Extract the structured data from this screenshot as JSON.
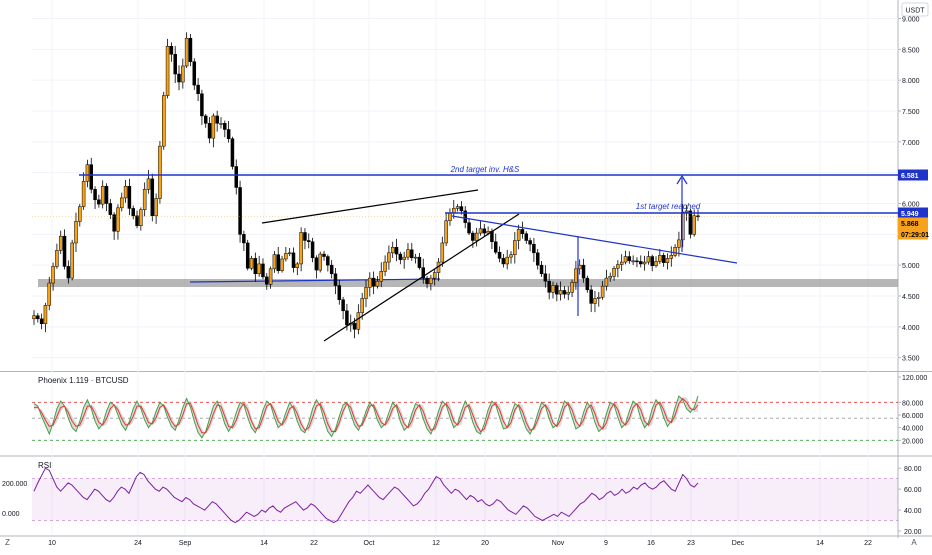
{
  "chart_data": [
    {
      "type": "candlestick",
      "title": "",
      "currency": "USDT",
      "price_axis": {
        "ticks": [
          "9.000",
          "8.500",
          "8.000",
          "7.500",
          "7.000",
          "6.500",
          "6.000",
          "5.500",
          "5.000",
          "4.500",
          "4.000",
          "3.500"
        ],
        "ylim": [
          3.3,
          9.3
        ]
      },
      "time_axis": {
        "ticks": [
          "10",
          "24",
          "Sep",
          "14",
          "22",
          "Oct",
          "12",
          "20",
          "Nov",
          "9",
          "16",
          "23",
          "Dec",
          "14",
          "22"
        ]
      },
      "series": [
        {
          "values": [
            4.18,
            4.13,
            4.05,
            4.35,
            4.71,
            4.98,
            5.24,
            5.47,
            4.98,
            4.79,
            5.36,
            5.71,
            5.95,
            6.36,
            6.63,
            6.23,
            6.06,
            5.99,
            6.28,
            6.0,
            5.82,
            5.55,
            5.93,
            6.09,
            6.28,
            5.92,
            5.8,
            5.64,
            5.9,
            6.23,
            6.4,
            5.8,
            6.08,
            6.93,
            7.75,
            8.55,
            8.42,
            8.1,
            7.97,
            8.23,
            8.68,
            8.3,
            7.92,
            7.78,
            7.42,
            7.3,
            7.06,
            7.42,
            7.3,
            7.3,
            7.2,
            7.05,
            6.6,
            6.26,
            5.5,
            5.36,
            4.95,
            5.11,
            4.86,
            5.02,
            4.81,
            4.69,
            4.94,
            5.17,
            4.91,
            5.1,
            5.19,
            5.2,
            4.96,
            5.02,
            5.53,
            5.4,
            5.38,
            5.12,
            4.92,
            5.18,
            5.14,
            5.0,
            4.86,
            4.67,
            4.44,
            4.26,
            4.03,
            4.06,
            3.96,
            4.23,
            4.46,
            4.64,
            4.79,
            4.66,
            4.74,
            4.9,
            5.05,
            5.2,
            5.29,
            5.18,
            5.09,
            5.13,
            5.25,
            5.12,
            5.13,
            4.96,
            4.79,
            4.7,
            4.79,
            4.88,
            5.05,
            5.36,
            5.72,
            5.85,
            5.92,
            5.95,
            5.88,
            5.69,
            5.52,
            5.4,
            5.52,
            5.59,
            5.52,
            5.55,
            5.38,
            5.21,
            5.11,
            5.02,
            5.13,
            5.17,
            5.4,
            5.58,
            5.51,
            5.4,
            5.34,
            5.2,
            5.0,
            4.86,
            4.74,
            4.56,
            4.67,
            4.53,
            4.59,
            4.53,
            4.56,
            4.72,
            4.94,
            5.0,
            4.79,
            4.6,
            4.38,
            4.46,
            4.48,
            4.66,
            4.79,
            4.82,
            4.95,
            5.01,
            5.05,
            5.14,
            5.07,
            5.07,
            5.06,
            5.02,
            5.05,
            5.14,
            4.99,
            5.06,
            5.16,
            5.04,
            5.11,
            5.16,
            5.29,
            5.41,
            5.86,
            5.88,
            5.5,
            5.8,
            5.79
          ]
        }
      ],
      "last_values": {
        "target_1": "5.949",
        "target_2": "6.581",
        "price": "5.868",
        "countdown": "07:29:01"
      },
      "annotations": [
        "2nd target inv. H&S",
        "1st target reached"
      ]
    },
    {
      "type": "line",
      "title": "Phoenix 1.119 · BTCUSD",
      "y_ticks": [
        "120.000",
        "80.000",
        "60.000",
        "40.000",
        "20.000"
      ],
      "ylim": [
        0,
        120
      ],
      "levels": [
        80,
        55,
        20
      ],
      "series": [
        {
          "name": "",
          "values": [
            78,
            74,
            58,
            44,
            30,
            48,
            70,
            82,
            74,
            55,
            40,
            34,
            50,
            72,
            84,
            70,
            50,
            38,
            46,
            66,
            80,
            76,
            60,
            44,
            36,
            50,
            70,
            82,
            70,
            52,
            40,
            48,
            66,
            80,
            74,
            56,
            42,
            36,
            52,
            72,
            86,
            72,
            50,
            32,
            24,
            34,
            54,
            74,
            82,
            66,
            46,
            34,
            44,
            64,
            80,
            76,
            56,
            40,
            32,
            46,
            68,
            82,
            76,
            56,
            40,
            46,
            64,
            80,
            70,
            50,
            36,
            32,
            48,
            70,
            84,
            74,
            52,
            34,
            26,
            38,
            58,
            76,
            80,
            62,
            44,
            36,
            48,
            66,
            80,
            72,
            52,
            40,
            46,
            64,
            80,
            72,
            50,
            36,
            42,
            62,
            78,
            74,
            54,
            38,
            30,
            44,
            66,
            82,
            76,
            56,
            40,
            46,
            66,
            82,
            70,
            48,
            34,
            30,
            46,
            68,
            82,
            76,
            56,
            38,
            40,
            60,
            78,
            74,
            54,
            38,
            30,
            42,
            62,
            80,
            74,
            54,
            40,
            44,
            64,
            82,
            76,
            56,
            38,
            42,
            64,
            80,
            70,
            48,
            34,
            40,
            62,
            80,
            76,
            56,
            40,
            46,
            66,
            82,
            76,
            54,
            40,
            48,
            70,
            84,
            76,
            56,
            42,
            50,
            72,
            90,
            84,
            70,
            64,
            72,
            90
          ]
        },
        {
          "name": "",
          "values": [
            72,
            72,
            64,
            52,
            42,
            44,
            58,
            72,
            74,
            64,
            50,
            42,
            44,
            58,
            74,
            74,
            62,
            48,
            44,
            54,
            70,
            76,
            68,
            54,
            44,
            46,
            58,
            74,
            74,
            62,
            48,
            46,
            56,
            72,
            76,
            64,
            50,
            42,
            46,
            60,
            78,
            78,
            62,
            44,
            32,
            32,
            44,
            62,
            76,
            74,
            58,
            42,
            40,
            52,
            70,
            78,
            68,
            50,
            38,
            40,
            56,
            74,
            78,
            66,
            50,
            44,
            54,
            70,
            74,
            62,
            46,
            36,
            40,
            56,
            74,
            78,
            64,
            46,
            34,
            34,
            48,
            66,
            78,
            72,
            54,
            42,
            44,
            58,
            74,
            76,
            62,
            48,
            44,
            54,
            70,
            76,
            62,
            46,
            40,
            50,
            68,
            76,
            66,
            48,
            36,
            38,
            54,
            72,
            78,
            68,
            50,
            44,
            54,
            72,
            76,
            60,
            44,
            34,
            38,
            56,
            74,
            78,
            68,
            50,
            40,
            48,
            68,
            76,
            66,
            48,
            36,
            38,
            52,
            70,
            76,
            66,
            48,
            42,
            52,
            72,
            78,
            68,
            50,
            42,
            52,
            70,
            76,
            62,
            44,
            38,
            48,
            68,
            78,
            68,
            50,
            44,
            54,
            72,
            78,
            68,
            50,
            44,
            56,
            76,
            80,
            68,
            52,
            48,
            60,
            78,
            86,
            80,
            70,
            68,
            76
          ]
        }
      ]
    },
    {
      "type": "line",
      "title": "RSI",
      "y_ticks": [
        "80.00",
        "60.00",
        "40.00",
        "20.00"
      ],
      "left_ticks": [
        "200.000",
        "0.000"
      ],
      "ylim": [
        20,
        85
      ],
      "band": [
        30,
        70
      ],
      "series": [
        {
          "name": "",
          "values": [
            58,
            66,
            73,
            80,
            78,
            70,
            62,
            58,
            62,
            66,
            64,
            60,
            56,
            52,
            50,
            55,
            60,
            58,
            54,
            50,
            48,
            52,
            58,
            62,
            60,
            56,
            64,
            72,
            76,
            74,
            68,
            64,
            60,
            58,
            62,
            60,
            56,
            52,
            50,
            48,
            52,
            50,
            46,
            44,
            42,
            40,
            44,
            48,
            46,
            42,
            38,
            34,
            30,
            28,
            30,
            34,
            38,
            36,
            34,
            36,
            40,
            38,
            42,
            44,
            40,
            38,
            42,
            44,
            46,
            48,
            44,
            40,
            42,
            46,
            44,
            40,
            36,
            32,
            30,
            28,
            30,
            36,
            42,
            48,
            52,
            58,
            56,
            60,
            64,
            60,
            56,
            52,
            50,
            54,
            58,
            62,
            60,
            56,
            52,
            48,
            44,
            46,
            50,
            56,
            60,
            66,
            72,
            70,
            64,
            60,
            56,
            60,
            58,
            54,
            50,
            54,
            52,
            48,
            50,
            46,
            44,
            46,
            50,
            48,
            44,
            40,
            38,
            36,
            40,
            44,
            42,
            38,
            34,
            32,
            30,
            32,
            34,
            36,
            34,
            38,
            36,
            34,
            38,
            42,
            46,
            48,
            52,
            56,
            54,
            50,
            52,
            56,
            58,
            54,
            56,
            60,
            56,
            58,
            62,
            60,
            64,
            66,
            62,
            60,
            62,
            66,
            68,
            64,
            60,
            58,
            66,
            74,
            70,
            64,
            62,
            66
          ]
        }
      ]
    }
  ]
}
